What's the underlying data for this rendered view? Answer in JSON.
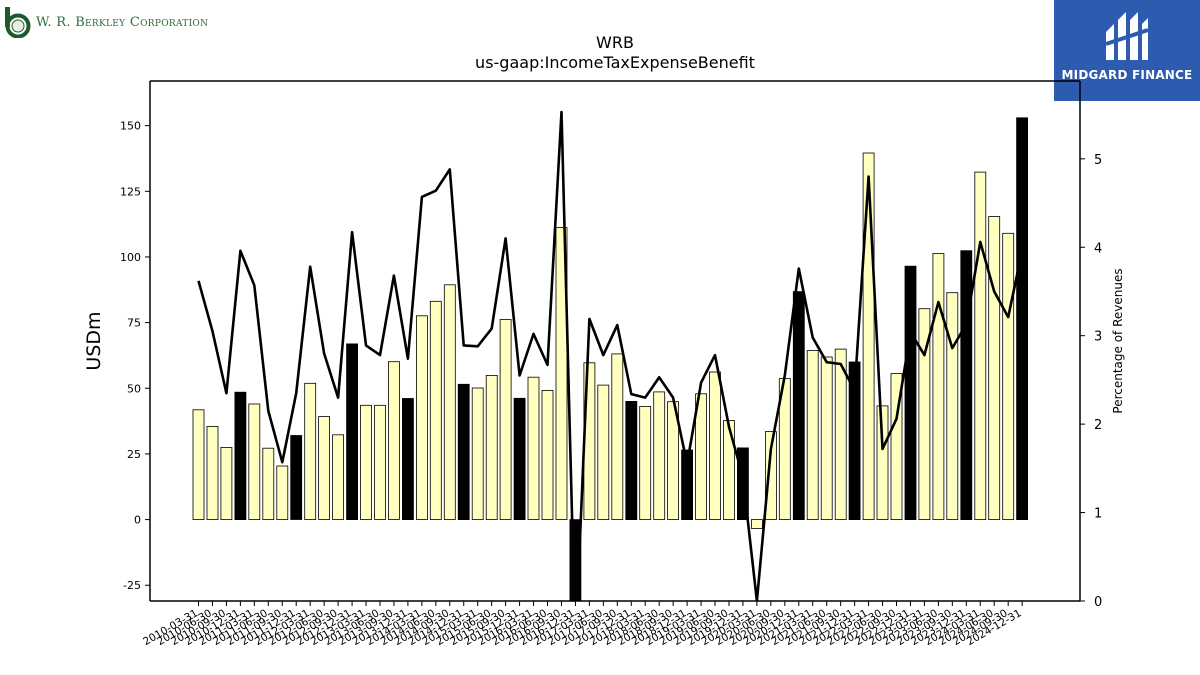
{
  "branding": {
    "company_name": "W. R. Berkley Corporation",
    "partner_name": "MIDGARD FINANCE",
    "partner_color": "#2d5bb0"
  },
  "chart_data": {
    "type": "bar",
    "title": "WRB",
    "subtitle": "us-gaap:IncomeTaxExpenseBenefit",
    "ylabel": "USDm",
    "y2label": "Percentage of Revenues",
    "ylim": [
      -31,
      167
    ],
    "y2lim": [
      0,
      5.88
    ],
    "yticks": [
      -25,
      0,
      25,
      50,
      75,
      100,
      125,
      150
    ],
    "y2ticks": [
      0,
      1,
      2,
      3,
      4,
      5
    ],
    "colors": {
      "bar_quarter": "#ffffc0",
      "bar_year_end": "#000000",
      "line": "#000000"
    },
    "categories": [
      "2010-03-31",
      "2010-06-30",
      "2010-09-30",
      "2010-12-31",
      "2011-03-31",
      "2011-06-30",
      "2011-09-30",
      "2011-12-31",
      "2012-03-31",
      "2012-06-30",
      "2012-09-30",
      "2012-12-31",
      "2013-03-31",
      "2013-06-30",
      "2013-09-30",
      "2013-12-31",
      "2014-03-31",
      "2014-06-30",
      "2014-09-30",
      "2014-12-31",
      "2015-03-31",
      "2015-06-30",
      "2015-09-30",
      "2015-12-31",
      "2016-03-31",
      "2016-06-30",
      "2016-09-30",
      "2016-12-31",
      "2017-03-31",
      "2017-06-30",
      "2017-09-30",
      "2017-12-31",
      "2018-03-31",
      "2018-06-30",
      "2018-09-30",
      "2018-12-31",
      "2019-03-31",
      "2019-06-30",
      "2019-09-30",
      "2019-12-31",
      "2020-03-31",
      "2020-06-30",
      "2020-09-30",
      "2020-12-31",
      "2021-03-31",
      "2021-06-30",
      "2021-09-30",
      "2021-12-31",
      "2022-03-31",
      "2022-06-30",
      "2022-09-30",
      "2022-12-31",
      "2023-03-31",
      "2023-06-30",
      "2023-09-30",
      "2023-12-31",
      "2024-03-31",
      "2024-06-30",
      "2024-09-30",
      "2024-12-31"
    ],
    "values": [
      41.8,
      35.5,
      27.5,
      48.5,
      44,
      27.2,
      20.4,
      32,
      51.9,
      39.2,
      32.3,
      66.9,
      43.5,
      43.5,
      60.1,
      46.1,
      77.6,
      83.1,
      89.4,
      51.5,
      50.1,
      54.9,
      76.2,
      46.2,
      54.2,
      49.2,
      111.2,
      -45,
      59.7,
      51.2,
      63.1,
      45,
      43.1,
      48.6,
      44.9,
      26.5,
      47.9,
      56.2,
      37.7,
      27.3,
      -3.4,
      33.5,
      53.7,
      86.8,
      64.4,
      61.9,
      64.9,
      60,
      139.6,
      43.3,
      55.6,
      96.5,
      80.3,
      101.3,
      86.4,
      102.4,
      132.3,
      115.4,
      109,
      153
    ],
    "year_end_flags": [
      false,
      false,
      false,
      true,
      false,
      false,
      false,
      true,
      false,
      false,
      false,
      true,
      false,
      false,
      false,
      true,
      false,
      false,
      false,
      true,
      false,
      false,
      false,
      true,
      false,
      false,
      false,
      true,
      false,
      false,
      false,
      true,
      false,
      false,
      false,
      true,
      false,
      false,
      false,
      true,
      false,
      false,
      false,
      true,
      false,
      false,
      false,
      true,
      false,
      false,
      false,
      true,
      false,
      false,
      false,
      true,
      false,
      false,
      false,
      true
    ],
    "pct_of_revenues": [
      3.62,
      3.05,
      2.35,
      3.96,
      3.57,
      2.15,
      1.57,
      2.35,
      3.78,
      2.8,
      2.3,
      4.17,
      2.89,
      2.78,
      3.68,
      2.74,
      4.57,
      4.64,
      4.88,
      2.89,
      2.88,
      3.08,
      4.1,
      2.55,
      3.02,
      2.67,
      5.53,
      -0.5,
      3.19,
      2.78,
      3.12,
      2.34,
      2.3,
      2.53,
      2.3,
      1.55,
      2.47,
      2.78,
      1.97,
      1.4,
      0.0,
      1.72,
      2.55,
      3.76,
      2.98,
      2.7,
      2.68,
      2.38,
      4.8,
      1.72,
      2.06,
      3.04,
      2.78,
      3.38,
      2.86,
      3.13,
      4.06,
      3.5,
      3.21,
      3.96
    ]
  }
}
